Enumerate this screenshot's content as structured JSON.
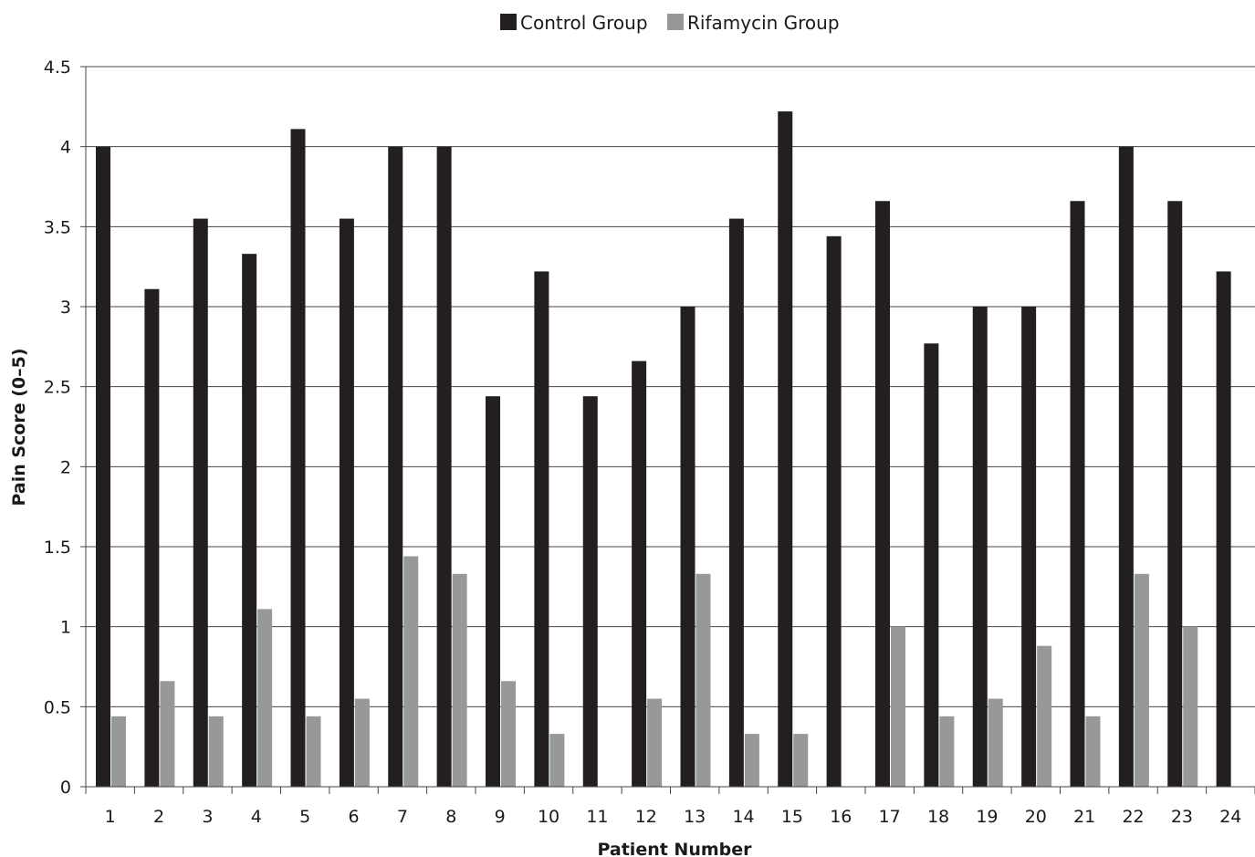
{
  "chart_data": {
    "type": "bar",
    "title": "",
    "xlabel": "Patient Number",
    "ylabel": "Pain Score (0–5)",
    "ylim": [
      0,
      4.5
    ],
    "yticks": [
      "0",
      "0.5",
      "1",
      "1.5",
      "2",
      "2.5",
      "3",
      "3.5",
      "4",
      "4.5"
    ],
    "grid": "horizontal",
    "legend_position": "top-center",
    "categories": [
      "1",
      "2",
      "3",
      "4",
      "5",
      "6",
      "7",
      "8",
      "9",
      "10",
      "11",
      "12",
      "13",
      "14",
      "15",
      "16",
      "17",
      "18",
      "19",
      "20",
      "21",
      "22",
      "23",
      "24"
    ],
    "series": [
      {
        "name": "Control Group",
        "color": "#231f20",
        "values": [
          4.0,
          3.11,
          3.55,
          3.33,
          4.11,
          3.55,
          4.0,
          4.0,
          2.44,
          3.22,
          2.44,
          2.66,
          3.0,
          3.55,
          4.22,
          3.44,
          3.66,
          2.77,
          3.0,
          3.0,
          3.66,
          4.0,
          3.66,
          3.22
        ]
      },
      {
        "name": "Rifamycin Group",
        "color": "#97989a",
        "values": [
          0.44,
          0.66,
          0.44,
          1.11,
          0.44,
          0.55,
          1.44,
          1.33,
          0.66,
          0.33,
          0.0,
          0.55,
          1.33,
          0.33,
          0.33,
          0.0,
          1.0,
          0.44,
          0.55,
          0.88,
          0.44,
          1.33,
          1.0,
          0.0
        ]
      }
    ]
  }
}
